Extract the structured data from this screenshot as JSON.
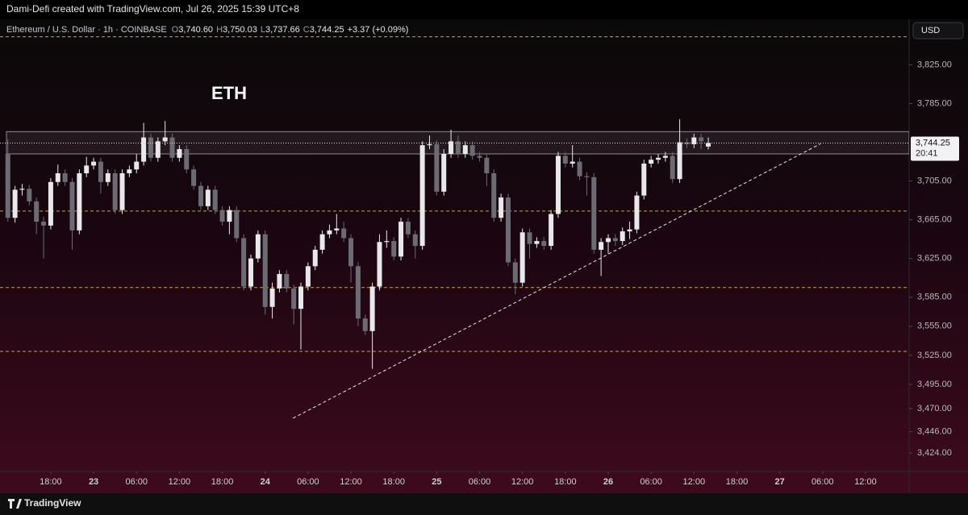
{
  "header": {
    "attribution": "Dami-Defi created with TradingView.com, Jul 26, 2025 15:39 UTC+8"
  },
  "chart_data": {
    "type": "candlestick",
    "symbol": "Ethereum / U.S. Dollar · 1h · COINBASE",
    "legend_values": [
      {
        "key": "O",
        "label": "3,740.60"
      },
      {
        "key": "H",
        "label": "3,750.03"
      },
      {
        "key": "L",
        "label": "3,737.66"
      },
      {
        "key": "C",
        "label": "3,744.25"
      }
    ],
    "change": "+3.37 (+0.09%)",
    "annotation": "ETH",
    "currency": "USD",
    "open": [
      3733,
      3667,
      3696,
      3697,
      3684,
      3663,
      3659,
      3704,
      3713,
      3704,
      3654,
      3713,
      3721,
      3725,
      3704,
      3713,
      3675,
      3713,
      3717,
      3725,
      3750,
      3729,
      3746,
      3750,
      3729,
      3738,
      3717,
      3700,
      3679,
      3696,
      3675,
      3663,
      3675,
      3646,
      3596,
      3625,
      3650,
      3575,
      3594,
      3609,
      3594,
      3573,
      3596,
      3617,
      3634,
      3650,
      3654,
      3656,
      3646,
      3617,
      3563,
      3550,
      3596,
      3642,
      3643,
      3627,
      3663,
      3650,
      3638,
      3742,
      3743,
      3694,
      3733,
      3746,
      3733,
      3742,
      3731,
      3729,
      3713,
      3667,
      3688,
      3621,
      3600,
      3652,
      3640,
      3643,
      3638,
      3671,
      3731,
      3723,
      3725,
      3710,
      3709,
      3634,
      3642,
      3646,
      3643,
      3653,
      3655,
      3690,
      3723,
      3727,
      3729,
      3731,
      3707,
      3745,
      3743,
      3750,
      3740.6
    ],
    "high": [
      3748,
      3700,
      3702,
      3701,
      3688,
      3668,
      3708,
      3722,
      3717,
      3708,
      3717,
      3730,
      3729,
      3729,
      3717,
      3717,
      3717,
      3721,
      3733,
      3765,
      3754,
      3750,
      3767,
      3754,
      3742,
      3742,
      3721,
      3704,
      3700,
      3700,
      3679,
      3679,
      3679,
      3650,
      3629,
      3654,
      3654,
      3600,
      3613,
      3613,
      3598,
      3600,
      3621,
      3638,
      3654,
      3660,
      3671,
      3663,
      3650,
      3621,
      3567,
      3600,
      3650,
      3654,
      3647,
      3667,
      3667,
      3654,
      3746,
      3752,
      3747,
      3738,
      3758,
      3752,
      3746,
      3746,
      3735,
      3733,
      3717,
      3692,
      3692,
      3625,
      3656,
      3656,
      3647,
      3647,
      3675,
      3735,
      3735,
      3742,
      3729,
      3714,
      3713,
      3646,
      3650,
      3650,
      3657,
      3663,
      3694,
      3727,
      3731,
      3733,
      3735,
      3735,
      3769,
      3749,
      3754,
      3754,
      3750.03
    ],
    "low": [
      3663,
      3662,
      3690,
      3680,
      3650,
      3625,
      3655,
      3700,
      3700,
      3634,
      3650,
      3709,
      3717,
      3692,
      3700,
      3671,
      3671,
      3709,
      3713,
      3721,
      3725,
      3725,
      3742,
      3725,
      3725,
      3713,
      3696,
      3675,
      3675,
      3671,
      3659,
      3650,
      3642,
      3592,
      3592,
      3621,
      3567,
      3563,
      3590,
      3590,
      3557,
      3531,
      3592,
      3613,
      3630,
      3646,
      3650,
      3642,
      3600,
      3555,
      3546,
      3511,
      3592,
      3636,
      3623,
      3623,
      3646,
      3625,
      3634,
      3738,
      3690,
      3690,
      3729,
      3729,
      3729,
      3727,
      3725,
      3700,
      3663,
      3663,
      3617,
      3588,
      3596,
      3625,
      3636,
      3634,
      3634,
      3667,
      3719,
      3719,
      3706,
      3690,
      3630,
      3607,
      3630,
      3638,
      3639,
      3645,
      3651,
      3686,
      3719,
      3723,
      3725,
      3703,
      3703,
      3739,
      3739,
      3738,
      3737.66
    ],
    "close": [
      3667,
      3696,
      3697,
      3684,
      3663,
      3659,
      3704,
      3713,
      3704,
      3654,
      3713,
      3721,
      3725,
      3704,
      3713,
      3675,
      3713,
      3717,
      3725,
      3750,
      3729,
      3746,
      3750,
      3729,
      3738,
      3717,
      3700,
      3679,
      3696,
      3675,
      3663,
      3675,
      3646,
      3596,
      3625,
      3650,
      3575,
      3594,
      3609,
      3594,
      3573,
      3596,
      3617,
      3634,
      3650,
      3654,
      3656,
      3646,
      3617,
      3563,
      3550,
      3596,
      3642,
      3643,
      3627,
      3663,
      3650,
      3638,
      3742,
      3743,
      3694,
      3733,
      3746,
      3733,
      3742,
      3731,
      3729,
      3713,
      3667,
      3688,
      3621,
      3600,
      3652,
      3640,
      3643,
      3638,
      3671,
      3731,
      3723,
      3725,
      3710,
      3709,
      3634,
      3642,
      3646,
      3643,
      3653,
      3655,
      3690,
      3723,
      3727,
      3729,
      3731,
      3707,
      3745,
      3743,
      3750,
      3746,
      3744.25
    ],
    "up_color": "#e8e8ea",
    "down_color": "#6c6b74",
    "ylim": [
      3405,
      3872
    ],
    "yticks": [
      {
        "value": 3825,
        "label": "3,825.00"
      },
      {
        "value": 3785,
        "label": "3,785.00"
      },
      {
        "value": 3705,
        "label": "3,705.00"
      },
      {
        "value": 3665,
        "label": "3,665.00"
      },
      {
        "value": 3625,
        "label": "3,625.00"
      },
      {
        "value": 3585,
        "label": "3,585.00"
      },
      {
        "value": 3555,
        "label": "3,555.00"
      },
      {
        "value": 3525,
        "label": "3,525.00"
      },
      {
        "value": 3495,
        "label": "3,495.00"
      },
      {
        "value": 3470,
        "label": "3,470.00"
      },
      {
        "value": 3446,
        "label": "3,446.00"
      },
      {
        "value": 3424,
        "label": "3,424.00"
      }
    ],
    "xlim": [
      -1.1,
      126.1
    ],
    "xticks": [
      {
        "value": 6,
        "label": "18:00"
      },
      {
        "value": 12,
        "label": "23"
      },
      {
        "value": 18,
        "label": "06:00"
      },
      {
        "value": 24,
        "label": "12:00"
      },
      {
        "value": 30,
        "label": "18:00"
      },
      {
        "value": 36,
        "label": "24"
      },
      {
        "value": 42,
        "label": "06:00"
      },
      {
        "value": 48,
        "label": "12:00"
      },
      {
        "value": 54,
        "label": "18:00"
      },
      {
        "value": 60,
        "label": "25"
      },
      {
        "value": 66,
        "label": "06:00"
      },
      {
        "value": 72,
        "label": "12:00"
      },
      {
        "value": 78,
        "label": "18:00"
      },
      {
        "value": 84,
        "label": "26"
      },
      {
        "value": 90,
        "label": "06:00"
      },
      {
        "value": 96,
        "label": "12:00"
      },
      {
        "value": 102,
        "label": "18:00"
      },
      {
        "value": 108,
        "label": "27"
      },
      {
        "value": 114,
        "label": "06:00"
      },
      {
        "value": 120,
        "label": "12:00"
      }
    ],
    "levels": [
      3854,
      3674,
      3595,
      3529
    ],
    "level_color": "#c9a43a",
    "zone": [
      3733,
      3756
    ],
    "trendline": {
      "x": [
        39.9,
        113.7
      ],
      "y": [
        3460,
        3743.5
      ]
    },
    "price_label": "3,744.25",
    "countdown": "20:41"
  },
  "footer": {
    "brand": "TradingView"
  }
}
